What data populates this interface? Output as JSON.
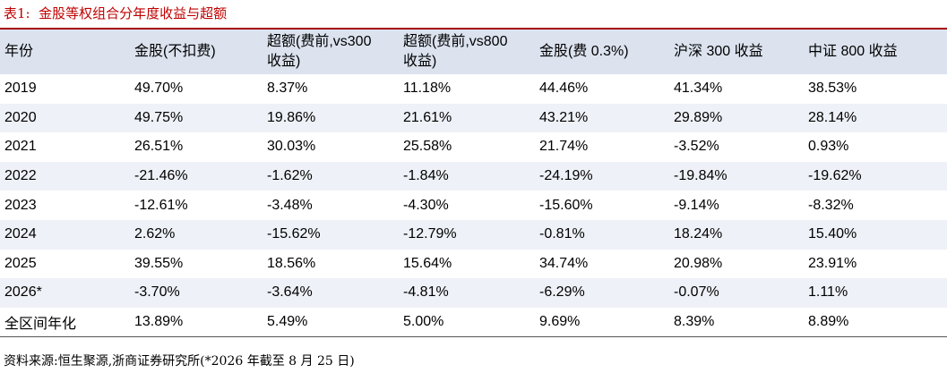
{
  "title": "表1:  金股等权组合分年度收益与超额",
  "table": {
    "headers": [
      "年份",
      "金股(不扣费)",
      "超额(费前,vs300\n收益)",
      "超额(费前,vs800\n收益)",
      "金股(费 0.3%)",
      "沪深 300 收益",
      "中证 800 收益"
    ],
    "rows": [
      [
        "2019",
        "49.70%",
        "8.37%",
        "11.18%",
        "44.46%",
        "41.34%",
        "38.53%"
      ],
      [
        "2020",
        "49.75%",
        "19.86%",
        "21.61%",
        "43.21%",
        "29.89%",
        "28.14%"
      ],
      [
        "2021",
        "26.51%",
        "30.03%",
        "25.58%",
        "21.74%",
        "-3.52%",
        "0.93%"
      ],
      [
        "2022",
        "-21.46%",
        "-1.62%",
        "-1.84%",
        "-24.19%",
        "-19.84%",
        "-19.62%"
      ],
      [
        "2023",
        "-12.61%",
        "-3.48%",
        "-4.30%",
        "-15.60%",
        "-9.14%",
        "-8.32%"
      ],
      [
        "2024",
        "2.62%",
        "-15.62%",
        "-12.79%",
        "-0.81%",
        "18.24%",
        "15.40%"
      ],
      [
        "2025",
        "39.55%",
        "18.56%",
        "15.64%",
        "34.74%",
        "20.98%",
        "23.91%"
      ],
      [
        "2026*",
        "-3.70%",
        "-3.64%",
        "-4.81%",
        "-6.29%",
        "-0.07%",
        "1.11%"
      ],
      [
        "全区间年化",
        "13.89%",
        "5.49%",
        "5.00%",
        "9.69%",
        "8.39%",
        "8.89%"
      ]
    ]
  },
  "source": "资料来源:恒生聚源,浙商证券研究所(*2026 年截至 8 月 25 日)"
}
